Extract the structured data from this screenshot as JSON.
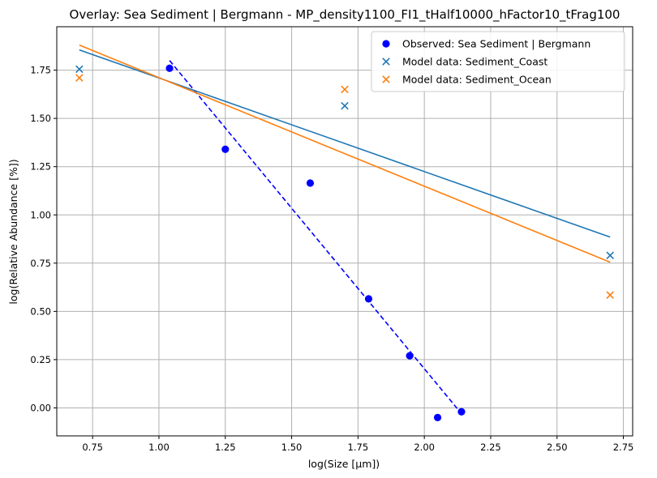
{
  "chart_data": {
    "type": "scatter",
    "title": "Overlay: Sea Sediment | Bergmann - MP_density1100_FI1_tHalf10000_hFactor10_tFrag100",
    "xlabel": "log(Size [μm])",
    "ylabel": "log(Relative Abundance [%])",
    "xlim": [
      0.615,
      2.785
    ],
    "ylim": [
      -0.145,
      1.975
    ],
    "xticks": [
      "0.75",
      "1.00",
      "1.25",
      "1.50",
      "1.75",
      "2.00",
      "2.25",
      "2.50",
      "2.75"
    ],
    "yticks": [
      "0.00",
      "0.25",
      "0.50",
      "0.75",
      "1.00",
      "1.25",
      "1.50",
      "1.75"
    ],
    "grid": true,
    "legend_position": "top-right",
    "series": [
      {
        "name": "Observed: Sea Sediment | Bergmann",
        "kind": "scatter",
        "marker": "circle",
        "color": "#0000ff",
        "points": [
          [
            1.04,
            1.76
          ],
          [
            1.25,
            1.34
          ],
          [
            1.57,
            1.165
          ],
          [
            1.79,
            0.565
          ],
          [
            1.945,
            0.27
          ],
          [
            2.05,
            -0.05
          ],
          [
            2.14,
            -0.02
          ]
        ]
      },
      {
        "name": "Model data: Sediment_Coast",
        "kind": "scatter",
        "marker": "x",
        "color": "#1f77b4",
        "points": [
          [
            0.7,
            1.755
          ],
          [
            1.7,
            1.565
          ],
          [
            2.7,
            0.79
          ]
        ]
      },
      {
        "name": "Model data: Sediment_Ocean",
        "kind": "scatter",
        "marker": "x",
        "color": "#ff7f0e",
        "points": [
          [
            0.7,
            1.71
          ],
          [
            1.7,
            1.65
          ],
          [
            2.7,
            0.585
          ]
        ]
      }
    ],
    "fit_lines": [
      {
        "color": "#0000ff",
        "style": "dashed",
        "points": [
          [
            1.04,
            1.8
          ],
          [
            2.14,
            -0.03
          ]
        ]
      },
      {
        "color": "#1f77b4",
        "style": "solid",
        "points": [
          [
            0.7,
            1.855
          ],
          [
            2.7,
            0.885
          ]
        ]
      },
      {
        "color": "#ff7f0e",
        "style": "solid",
        "points": [
          [
            0.7,
            1.88
          ],
          [
            2.7,
            0.755
          ]
        ]
      }
    ]
  }
}
